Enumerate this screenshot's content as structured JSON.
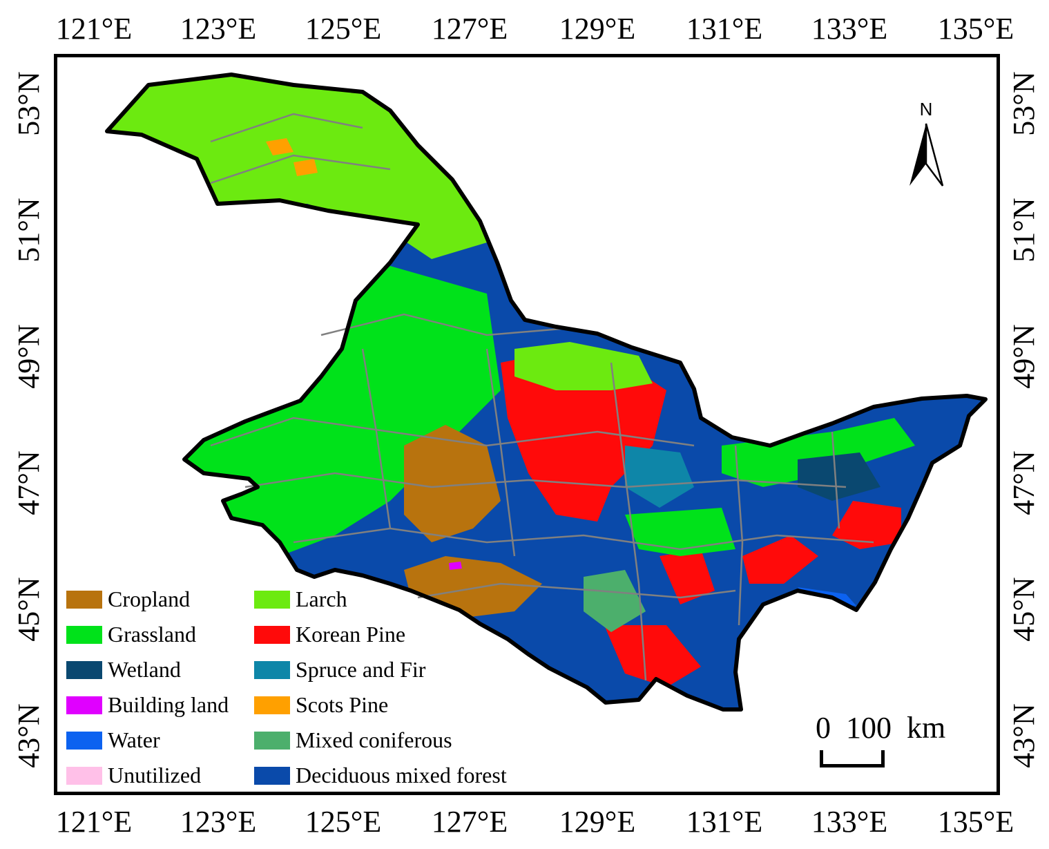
{
  "map": {
    "top_axis_labels": [
      "121°E",
      "123°E",
      "125°E",
      "127°E",
      "129°E",
      "131°E",
      "133°E",
      "135°E"
    ],
    "bottom_axis_labels": [
      "121°E",
      "123°E",
      "125°E",
      "127°E",
      "129°E",
      "131°E",
      "133°E",
      "135°E"
    ],
    "left_axis_labels": [
      "53°N",
      "51°N",
      "49°N",
      "47°N",
      "45°N",
      "43°N"
    ],
    "right_axis_labels": [
      "53°N",
      "51°N",
      "49°N",
      "47°N",
      "45°N",
      "43°N"
    ],
    "north_arrow": {
      "letter": "N",
      "icon": "north-arrow-icon"
    },
    "scale_bar": {
      "label": "0  100  km"
    },
    "legend": [
      {
        "label": "Cropland",
        "color": "#b8730e"
      },
      {
        "label": "Grassland",
        "color": "#00e21a"
      },
      {
        "label": "Wetland",
        "color": "#0a4870"
      },
      {
        "label": "Building land",
        "color": "#e000ff"
      },
      {
        "label": "Water",
        "color": "#0c62f0"
      },
      {
        "label": "Unutilized",
        "color": "#ffc0e8"
      },
      {
        "label": "Larch",
        "color": "#6cea10"
      },
      {
        "label": "Korean Pine",
        "color": "#ff0a0a"
      },
      {
        "label": "Spruce and Fir",
        "color": "#0e86a8"
      },
      {
        "label": "Scots Pine",
        "color": "#ffa000"
      },
      {
        "label": "Mixed coniferous",
        "color": "#4caf6c"
      },
      {
        "label": "Deciduous mixed forest",
        "color": "#0a4aaa"
      }
    ],
    "colors": {
      "boundary": "#000000",
      "admin_lines": "#808080"
    }
  }
}
